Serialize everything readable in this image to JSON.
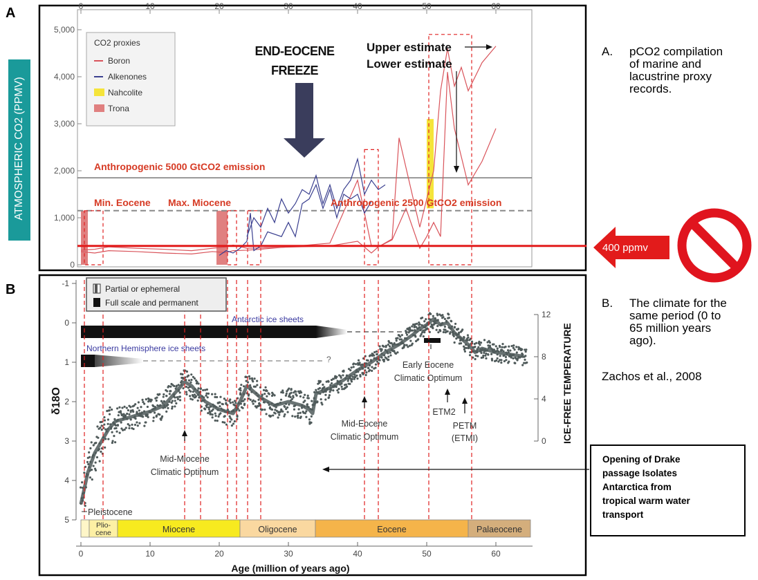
{
  "panel_labels": {
    "a": "A",
    "b": "B"
  },
  "side_notes": {
    "a_letter": "A.",
    "a_text_lines": [
      "pCO2 compilation",
      "of marine and",
      "lacustrine proxy",
      "records."
    ],
    "b_letter": "B.",
    "b_text_lines": [
      "The climate for the",
      "same period (0 to",
      "65 million years",
      "ago)."
    ],
    "citation": "Zachos et al., 2008"
  },
  "drake_box_lines": [
    "Opening of Drake",
    "passage Isolates",
    "Antarctica from",
    "tropical warm water",
    "transport"
  ],
  "colors": {
    "boron": "#d9535a",
    "alkenones": "#3a3f8f",
    "nahcolite": "#f5e43a",
    "trona": "#e08080",
    "marker_red": "#e02020",
    "teal": "#1a9a9a",
    "arrow_navy": "#3a3d5c",
    "d18o": "#4f5a5a",
    "miocene": "#f7ea1f",
    "oligocene": "#fad8a0",
    "eocene": "#f5b44a",
    "palaeocene": "#d4ae7c",
    "pliocene": "#fdf0a4"
  },
  "chart_data": [
    {
      "type": "line",
      "title": "",
      "xlabel": "",
      "ylabel": "ATMOSPHERIC CO2 (PPMV)",
      "xlim": [
        0,
        65
      ],
      "ylim": [
        0,
        5000
      ],
      "x_ticks": [
        "0",
        "10",
        "20",
        "30",
        "40",
        "50",
        "60"
      ],
      "y_ticks": [
        "0",
        "1,000",
        "2,000",
        "3,000",
        "4,000",
        "5,000"
      ],
      "legend_title": "CO2 proxies",
      "legend": [
        "Boron",
        "Alkenones",
        "Nahcolite",
        "Trona"
      ],
      "legend_position": "top-left",
      "series": [
        {
          "name": "Boron",
          "x": [
            0,
            2,
            4,
            8,
            12,
            16,
            19,
            21,
            22,
            24,
            26,
            36,
            40,
            42,
            43,
            45,
            47,
            49,
            50,
            51,
            52,
            53,
            54,
            56,
            58,
            60
          ],
          "y": [
            280,
            250,
            300,
            280,
            250,
            230,
            280,
            260,
            300,
            310,
            330,
            460,
            1800,
            400,
            380,
            530,
            1200,
            350,
            600,
            900,
            600,
            4100,
            2900,
            1700,
            2200,
            2900
          ]
        },
        {
          "name": "Boron",
          "x": [
            0,
            2,
            4,
            8,
            12,
            16,
            19,
            21,
            22,
            24,
            36,
            40,
            42,
            43,
            45,
            46,
            49,
            51,
            52,
            53,
            54,
            55,
            56,
            58,
            60
          ],
          "y": [
            310,
            330,
            380,
            350,
            330,
            300,
            350,
            380,
            420,
            350,
            400,
            500,
            250,
            380,
            550,
            2700,
            800,
            2000,
            3700,
            4600,
            3800,
            4200,
            3700,
            4300,
            4650
          ]
        },
        {
          "name": "Alkenones",
          "x": [
            20,
            21,
            22,
            23,
            24,
            24.5,
            25,
            26,
            27,
            29,
            30,
            31,
            32,
            33,
            34,
            35,
            36,
            37,
            38,
            39,
            40,
            41,
            42
          ],
          "y": [
            200,
            300,
            250,
            350,
            500,
            1100,
            300,
            400,
            700,
            600,
            900,
            600,
            1300,
            1400,
            1700,
            1200,
            1600,
            1000,
            1500,
            1400,
            1500,
            1100,
            1350
          ]
        },
        {
          "name": "Alkenones",
          "x": [
            24,
            25,
            26,
            27,
            28,
            29,
            30,
            31,
            32,
            33,
            34,
            35,
            36,
            37,
            38,
            39,
            40,
            41,
            42,
            43,
            44
          ],
          "y": [
            600,
            1000,
            800,
            1200,
            900,
            1400,
            1100,
            1300,
            1600,
            1500,
            1900,
            1300,
            1700,
            1200,
            1600,
            1800,
            2250,
            1500,
            1800,
            1600,
            1700
          ]
        }
      ],
      "bars": [
        {
          "name": "Nahcolite",
          "x": [
            50,
            51
          ],
          "y": [
            1200,
            3100
          ]
        },
        {
          "name": "Trona",
          "x": [
            0,
            1
          ],
          "y": [
            0,
            1150
          ]
        },
        {
          "name": "Trona",
          "x": [
            19.6,
            21.2
          ],
          "y": [
            0,
            1150
          ]
        }
      ],
      "reference_lines": [
        {
          "label": "Anthropogenic 5000 GtCO2 emission",
          "y": 1850
        },
        {
          "label": "Anthropogenic 2500 GtCO2 emission",
          "y": 1150
        },
        {
          "label": "400 ppmv",
          "y": 400
        }
      ],
      "annotations": {
        "end_eocene_freeze_lines": [
          "END-EOCENE",
          "FREEZE"
        ],
        "upper_estimate": "Upper estimate",
        "lower_estimate": "Lower estimate",
        "min_eocene": "Min. Eocene",
        "max_miocene": "Max. Miocene",
        "ppmv_arrow": "400 ppmv"
      }
    },
    {
      "type": "scatter",
      "title": "",
      "xlabel": "Age (million of years ago)",
      "ylabel": "δ18O",
      "ylabel_right": "ICE-FREE TEMPERATURE",
      "xlim": [
        0,
        65
      ],
      "ylim": [
        5,
        -1
      ],
      "x_ticks": [
        "0",
        "10",
        "20",
        "30",
        "40",
        "50",
        "60"
      ],
      "y_ticks": [
        "-1",
        "0",
        "1",
        "2",
        "3",
        "4",
        "5"
      ],
      "right_ticks": [
        "12",
        "8",
        "4",
        "0"
      ],
      "legend": [
        "Partial or ephemeral",
        "Full scale and permanent"
      ],
      "legend_position": "top-left",
      "series": [
        {
          "name": "δ18O",
          "x": [
            0,
            1,
            2,
            3,
            4,
            5,
            6,
            8,
            10,
            12,
            13,
            14,
            15,
            16,
            17,
            18,
            20,
            22,
            23,
            24,
            26,
            28,
            30,
            32,
            33,
            33.5,
            34,
            36,
            38,
            40,
            42,
            44,
            46,
            48,
            49,
            50,
            51,
            52,
            53,
            54,
            55,
            56,
            57,
            58,
            60,
            62,
            64
          ],
          "y": [
            4.6,
            3.8,
            3.3,
            3.0,
            2.7,
            2.5,
            2.45,
            2.35,
            2.25,
            2.1,
            1.9,
            1.7,
            1.5,
            1.6,
            1.8,
            2.0,
            2.2,
            2.3,
            2.0,
            1.6,
            1.9,
            2.1,
            2.0,
            2.1,
            2.2,
            2.3,
            1.8,
            1.65,
            1.45,
            1.2,
            1.0,
            0.75,
            0.55,
            0.3,
            0.15,
            0.05,
            -0.1,
            0.05,
            0.0,
            0.25,
            0.4,
            0.55,
            0.75,
            0.65,
            0.75,
            0.8,
            0.85
          ]
        }
      ],
      "ice_sheets": [
        {
          "label": "Antarctic ice sheets",
          "from": 0,
          "to": 34,
          "dashed_to": 50
        },
        {
          "label": "Northern Hemisphere ice sheets",
          "from": 0,
          "to": 3.5,
          "dashed_to": 35,
          "query": "?"
        }
      ],
      "events": [
        {
          "label_lines": [
            "Mid-Miocene",
            "Climatic Optimum"
          ],
          "x": 15
        },
        {
          "label_lines": [
            "Mid-Eocene",
            "Climatic Optimum"
          ],
          "x": 41
        },
        {
          "label_lines": [
            "Early Eocene",
            "Climatic Optimum"
          ],
          "x": 51
        },
        {
          "label_lines": [
            "ETM2"
          ],
          "x": 53
        },
        {
          "label_lines": [
            "PETM",
            "(ETMI)"
          ],
          "x": 55.5
        }
      ],
      "pleistocene_label": "Pleistocene",
      "epochs": [
        {
          "label": "",
          "from": 0,
          "to": 1.2,
          "color": "#fff6c8"
        },
        {
          "label": "Plio-\ncene",
          "from": 1.2,
          "to": 5.3,
          "color": "#fdf0a4"
        },
        {
          "label": "Miocene",
          "from": 5.3,
          "to": 23,
          "color": "#f7ea1f"
        },
        {
          "label": "Oligocene",
          "from": 23,
          "to": 33.9,
          "color": "#fad8a0"
        },
        {
          "label": "Eocene",
          "from": 33.9,
          "to": 56,
          "color": "#f5b44a"
        },
        {
          "label": "Palaeocene",
          "from": 56,
          "to": 65,
          "color": "#d4ae7c"
        }
      ],
      "dashed_guides_ma": [
        0.5,
        3.2,
        15,
        17.3,
        21.2,
        22.5,
        24.1,
        26,
        41,
        43,
        50.3,
        56.5
      ]
    }
  ]
}
